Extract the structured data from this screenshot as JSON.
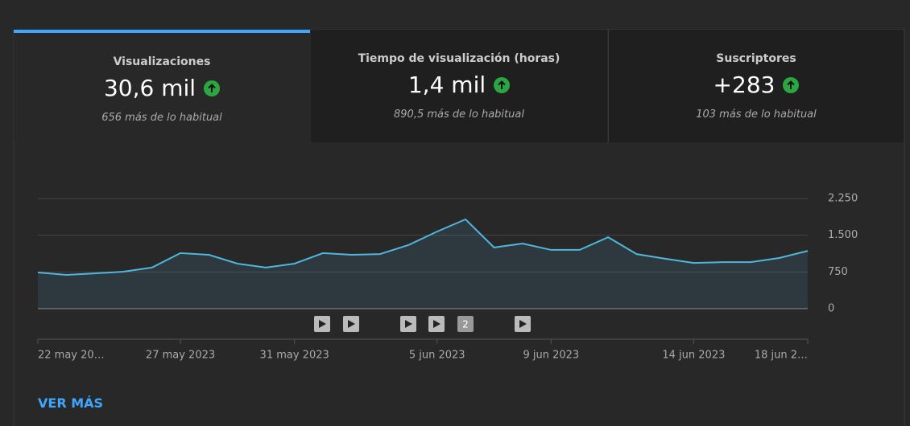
{
  "tabs": [
    {
      "label": "Visualizaciones",
      "value": "30,6 mil",
      "note": "656 más de lo habitual"
    },
    {
      "label": "Tiempo de visualización (horas)",
      "value": "1,4 mil",
      "note": "890,5 más de lo habitual"
    },
    {
      "label": "Suscriptores",
      "value": "+283",
      "note": "103 más de lo habitual"
    }
  ],
  "chart_data": {
    "type": "line",
    "categories": [
      "22 may 20…",
      null,
      null,
      null,
      null,
      "27 may 2023",
      null,
      null,
      null,
      "31 may 2023",
      null,
      null,
      null,
      null,
      "5 jun 2023",
      null,
      null,
      null,
      "9 jun 2023",
      null,
      null,
      null,
      null,
      "14 jun 2023",
      null,
      null,
      null,
      "18 jun 2…"
    ],
    "values": [
      740,
      690,
      720,
      755,
      840,
      1135,
      1100,
      920,
      840,
      920,
      1135,
      1100,
      1115,
      1300,
      1575,
      1825,
      1250,
      1330,
      1200,
      1200,
      1460,
      1115,
      1020,
      935,
      950,
      950,
      1035,
      1180
    ],
    "color": "#4fb6dc",
    "ylim": [
      0,
      2250
    ],
    "yticks": [
      0,
      750,
      {
        "value": 1500,
        "label": "1.500"
      },
      {
        "value": 2250,
        "label": "2.250"
      }
    ],
    "grid": true,
    "annotation": "2"
  },
  "link": "VER MÁS"
}
